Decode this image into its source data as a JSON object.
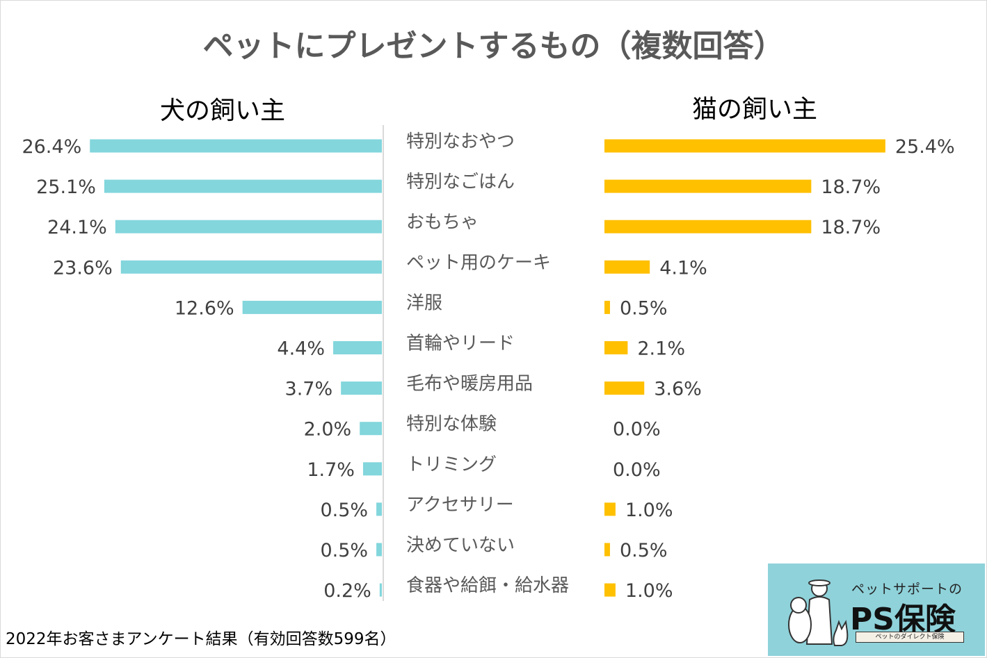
{
  "title": "ペットにプレゼントするもの（複数回答）",
  "footnote": "2022年お客さまアンケート結果（有効回答数599名）",
  "colors": {
    "dog": "#82d6dc",
    "cat": "#ffc000",
    "axis": "#d9d9d9",
    "logo_bg": "#8fd2da"
  },
  "logo": {
    "subtitle": "ペットサポートの",
    "name": "PS保険",
    "tagline": "ペットのダイレクト保険",
    "art": "pet-owner-with-dog-and-cat-icon"
  },
  "chart_data": {
    "type": "bar",
    "orientation": "horizontal-butterfly",
    "title": "ペットにプレゼントするもの（複数回答）",
    "unit": "%",
    "categories": [
      "特別なおやつ",
      "特別なごはん",
      "おもちゃ",
      "ペット用のケーキ",
      "洋服",
      "首輪やリード",
      "毛布や暖房用品",
      "特別な体験",
      "トリミング",
      "アクセサリー",
      "決めていない",
      "食器や給餌・給水器"
    ],
    "series": [
      {
        "name": "犬の飼い主",
        "side": "left",
        "values": [
          26.4,
          25.1,
          24.1,
          23.6,
          12.6,
          4.4,
          3.7,
          2.0,
          1.7,
          0.5,
          0.5,
          0.2
        ]
      },
      {
        "name": "猫の飼い主",
        "side": "right",
        "values": [
          25.4,
          18.7,
          18.7,
          4.1,
          0.5,
          2.1,
          3.6,
          0.0,
          0.0,
          1.0,
          0.5,
          1.0
        ]
      }
    ]
  }
}
